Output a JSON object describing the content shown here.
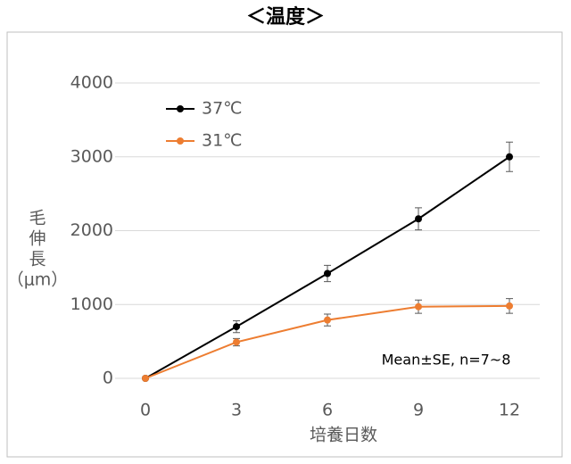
{
  "chart_data": {
    "type": "line",
    "title": "＜温度＞",
    "y_label": [
      "毛",
      "伸",
      "長",
      "（μm）"
    ],
    "x_label": "培養日数",
    "annotation": "Mean±SE, n=7~8",
    "x": [
      0,
      3,
      6,
      9,
      12
    ],
    "series": [
      {
        "name": "37℃",
        "color": "#000000",
        "values": [
          0,
          700,
          1420,
          2160,
          3000
        ],
        "errors": [
          0,
          80,
          110,
          150,
          200
        ]
      },
      {
        "name": "31℃",
        "color": "#ED7D31",
        "values": [
          0,
          490,
          790,
          970,
          980
        ],
        "errors": [
          0,
          50,
          80,
          90,
          100
        ]
      }
    ],
    "xlim": [
      -1,
      13
    ],
    "xticks": [
      0,
      3,
      6,
      9,
      12
    ],
    "ylim": [
      0,
      4000
    ],
    "yticks": [
      0,
      1000,
      2000,
      3000,
      4000
    ],
    "grid": true,
    "legend": "upper-left"
  }
}
